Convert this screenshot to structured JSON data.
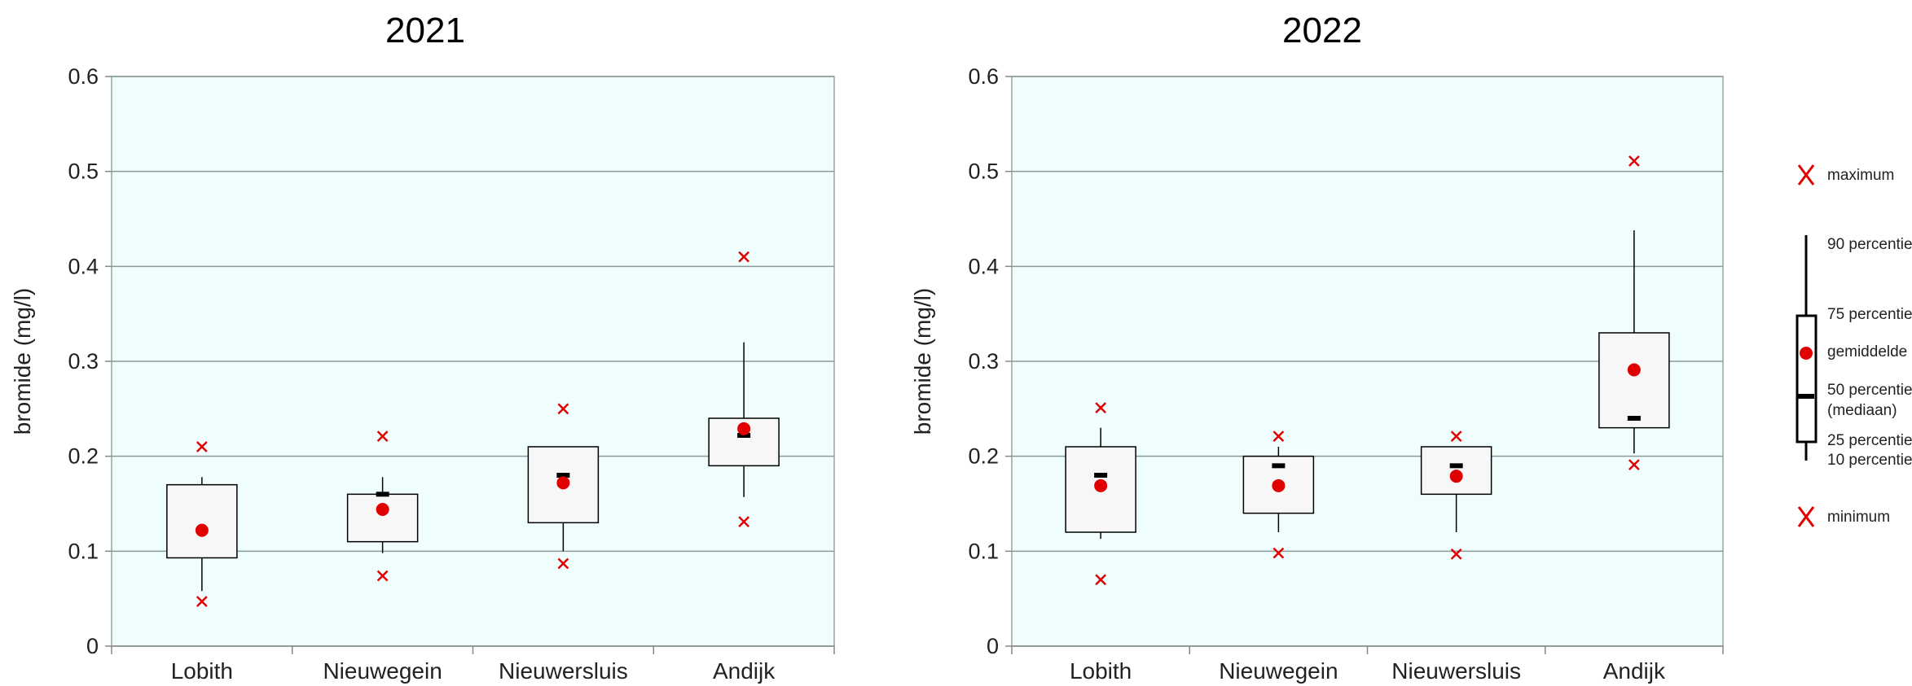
{
  "chart_data": [
    {
      "type": "boxplot",
      "title": "2021",
      "ylabel": "bromide (mg/l)",
      "ylim": [
        0,
        0.6
      ],
      "yticks": [
        0,
        0.1,
        0.2,
        0.3,
        0.4,
        0.5,
        0.6
      ],
      "ytick_labels": [
        "0",
        "0.1",
        "0.2",
        "0.3",
        "0.4",
        "0.5",
        "0.6"
      ],
      "grid": true,
      "categories": [
        "Lobith",
        "Nieuwegein",
        "Nieuwersluis",
        "Andijk"
      ],
      "boxes": [
        {
          "category": "Lobith",
          "min": 0.047,
          "p10": 0.058,
          "p25": 0.093,
          "median": null,
          "mean": 0.122,
          "p75": 0.17,
          "p90": 0.178,
          "max": 0.21
        },
        {
          "category": "Nieuwegein",
          "min": 0.074,
          "p10": 0.098,
          "p25": 0.11,
          "median": 0.16,
          "mean": 0.144,
          "p75": 0.16,
          "p90": 0.178,
          "max": 0.221
        },
        {
          "category": "Nieuwersluis",
          "min": 0.087,
          "p10": 0.1,
          "p25": 0.13,
          "median": 0.18,
          "mean": 0.172,
          "p75": 0.21,
          "p90": 0.21,
          "max": 0.25
        },
        {
          "category": "Andijk",
          "min": 0.131,
          "p10": 0.157,
          "p25": 0.19,
          "median": 0.222,
          "mean": 0.229,
          "p75": 0.24,
          "p90": 0.32,
          "max": 0.41
        }
      ]
    },
    {
      "type": "boxplot",
      "title": "2022",
      "ylabel": "bromide (mg/l)",
      "ylim": [
        0,
        0.6
      ],
      "yticks": [
        0,
        0.1,
        0.2,
        0.3,
        0.4,
        0.5,
        0.6
      ],
      "ytick_labels": [
        "0",
        "0.1",
        "0.2",
        "0.3",
        "0.4",
        "0.5",
        "0.6"
      ],
      "grid": true,
      "categories": [
        "Lobith",
        "Nieuwegein",
        "Nieuwersluis",
        "Andijk"
      ],
      "boxes": [
        {
          "category": "Lobith",
          "min": 0.07,
          "p10": 0.113,
          "p25": 0.12,
          "median": 0.18,
          "mean": 0.169,
          "p75": 0.21,
          "p90": 0.23,
          "max": 0.251
        },
        {
          "category": "Nieuwegein",
          "min": 0.098,
          "p10": 0.12,
          "p25": 0.14,
          "median": 0.19,
          "mean": 0.169,
          "p75": 0.2,
          "p90": 0.21,
          "max": 0.221
        },
        {
          "category": "Nieuwersluis",
          "min": 0.097,
          "p10": 0.12,
          "p25": 0.16,
          "median": 0.19,
          "mean": 0.179,
          "p75": 0.21,
          "p90": 0.21,
          "max": 0.221
        },
        {
          "category": "Andijk",
          "min": 0.191,
          "p10": 0.203,
          "p25": 0.23,
          "median": 0.24,
          "mean": 0.291,
          "p75": 0.33,
          "p90": 0.438,
          "max": 0.511
        }
      ]
    }
  ],
  "legend": {
    "placement": "right",
    "items": {
      "maximum": "maximum",
      "p90": "90 percentiel",
      "p75": "75 percentiel",
      "mean": "gemiddelde",
      "median_line1": "50 percentiel",
      "median_line2": "(mediaan)",
      "p25": "25 percentiel",
      "p10": "10 percentiel",
      "minimum": "minimum"
    }
  },
  "colors": {
    "plot_background": "#effdfd",
    "grid": "#8a9a9a",
    "box_fill": "#f7f7f7",
    "box_stroke": "#000000",
    "mean_marker": "#e00000",
    "extreme_marker": "#e00000",
    "median_marker": "#000000"
  }
}
